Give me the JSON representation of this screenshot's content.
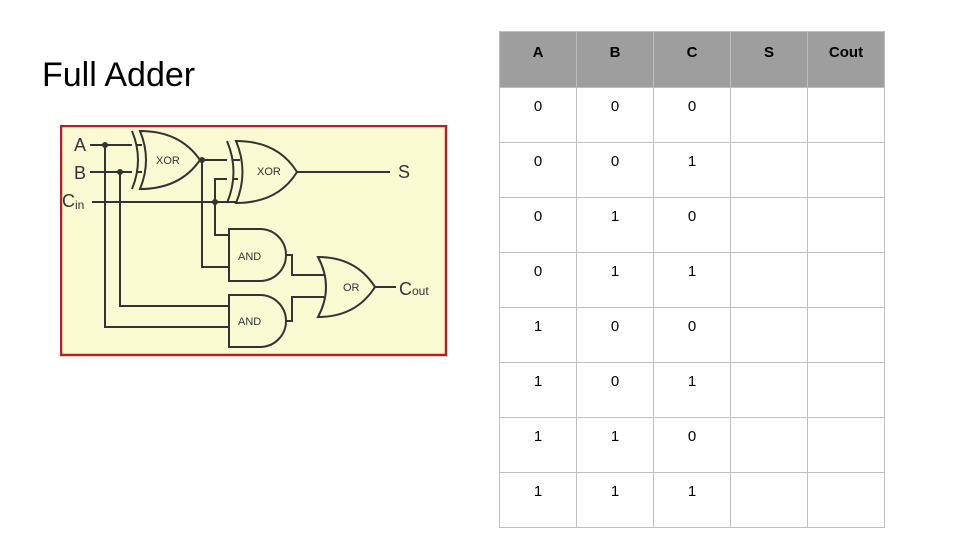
{
  "slide": {
    "title": "Full Adder"
  },
  "diagram": {
    "inputs": {
      "a": "A",
      "b": "B",
      "cin_main": "C",
      "cin_sub": "in"
    },
    "outputs": {
      "s": "S",
      "cout_main": "C",
      "cout_sub": "out"
    },
    "gates": {
      "xor1": "XOR",
      "xor2": "XOR",
      "and1": "AND",
      "and2": "AND",
      "or1": "OR"
    },
    "colors": {
      "background": "#fafad2",
      "border": "#b22222",
      "wire": "#333333"
    }
  },
  "table": {
    "headers": [
      "A",
      "B",
      "C",
      "S",
      "Cout"
    ],
    "rows": [
      [
        "0",
        "0",
        "0",
        "",
        ""
      ],
      [
        "0",
        "0",
        "1",
        "",
        ""
      ],
      [
        "0",
        "1",
        "0",
        "",
        ""
      ],
      [
        "0",
        "1",
        "1",
        "",
        ""
      ],
      [
        "1",
        "0",
        "0",
        "",
        ""
      ],
      [
        "1",
        "0",
        "1",
        "",
        ""
      ],
      [
        "1",
        "1",
        "0",
        "",
        ""
      ],
      [
        "1",
        "1",
        "1",
        "",
        ""
      ]
    ]
  }
}
